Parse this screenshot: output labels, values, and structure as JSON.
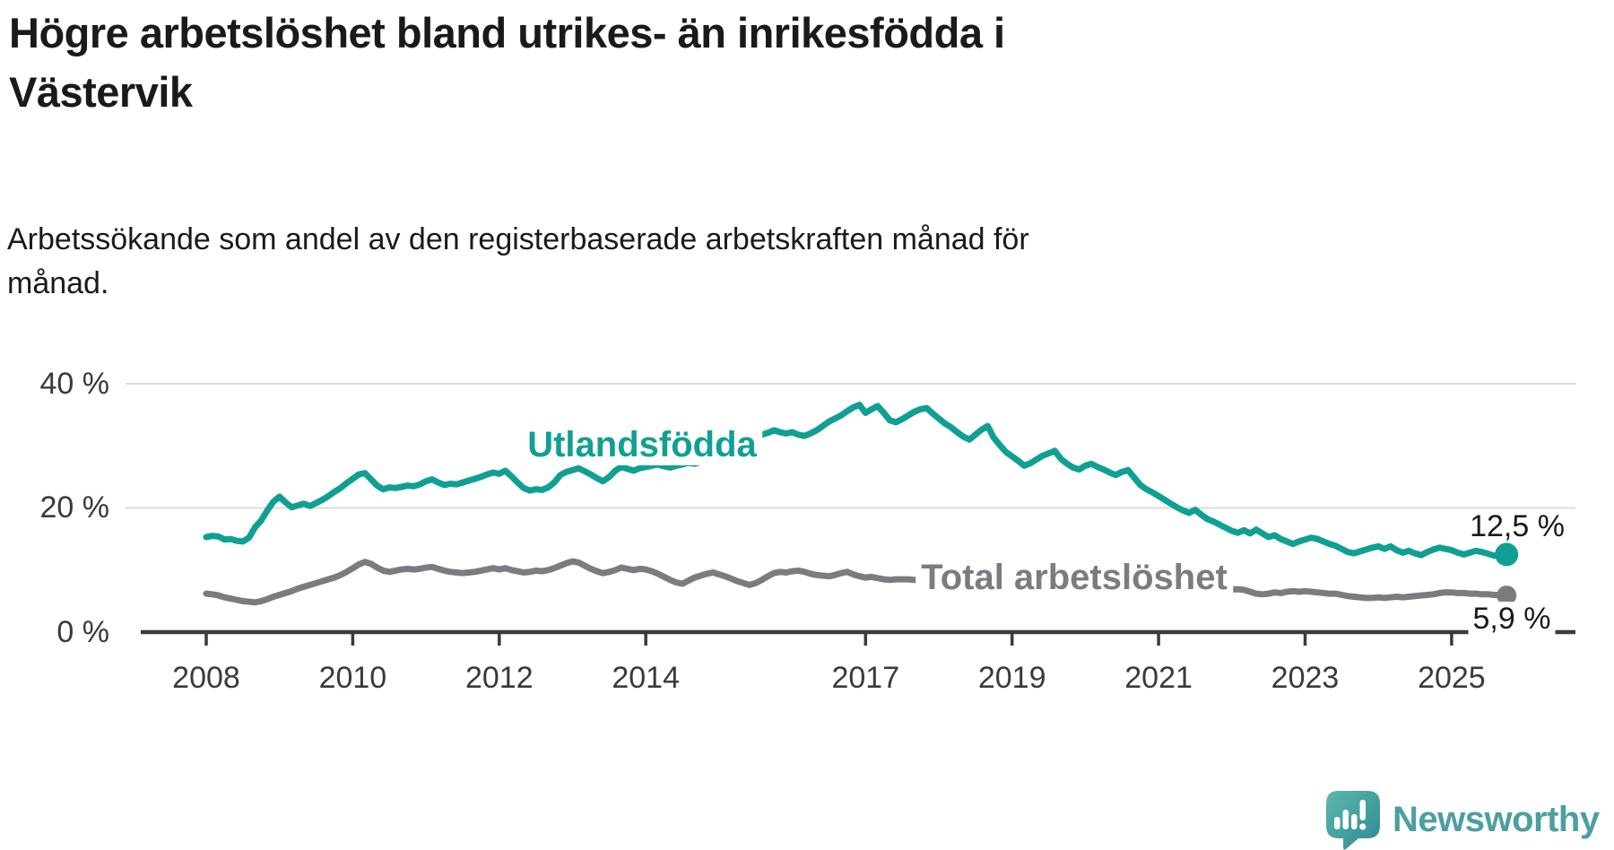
{
  "header": {
    "title": "Högre arbetslöshet bland utrikes- än inrikesfödda i\nVästervik",
    "subtitle": "Arbetssökande som andel av den registerbaserade arbetskraften månad för\nmånad."
  },
  "chart_data": {
    "type": "line",
    "title": "Högre arbetslöshet bland utrikes- än inrikesfödda i Västervik",
    "subtitle": "Arbetssökande som andel av den registerbaserade arbetskraften månad för månad.",
    "unit": "%",
    "grid": "horizontal-only",
    "x_axis": {
      "tick_labels": [
        "2008",
        "2010",
        "2012",
        "2014",
        "2017",
        "2019",
        "2021",
        "2023",
        "2025"
      ],
      "tick_years": [
        2008,
        2010,
        2012,
        2014,
        2017,
        2019,
        2021,
        2023,
        2025
      ],
      "range_years": [
        2007.1,
        2026.7
      ]
    },
    "y_axis": {
      "tick_labels": [
        "40 %",
        "20 %",
        "0 %"
      ],
      "tick_values": [
        40,
        20,
        0
      ],
      "ylim": [
        0,
        41.5
      ]
    },
    "series": [
      {
        "name": "Utlandsfödda",
        "color": "#10a093",
        "start_year": 2008,
        "frequency": "monthly",
        "end_label": "12,5 %",
        "end_value": 12.5,
        "values": [
          15.3,
          15.5,
          15.4,
          14.9,
          15.0,
          14.7,
          14.6,
          15.2,
          16.9,
          18.0,
          19.6,
          21.0,
          21.8,
          20.9,
          20.1,
          20.4,
          20.7,
          20.3,
          20.8,
          21.3,
          21.9,
          22.6,
          23.2,
          24.0,
          24.7,
          25.4,
          25.6,
          24.6,
          23.6,
          23.0,
          23.3,
          23.2,
          23.4,
          23.6,
          23.5,
          23.8,
          24.3,
          24.6,
          24.1,
          23.7,
          23.9,
          23.8,
          24.1,
          24.4,
          24.7,
          25.0,
          25.4,
          25.7,
          25.5,
          26.0,
          25.1,
          24.1,
          23.2,
          22.8,
          23.0,
          22.9,
          23.3,
          24.1,
          25.3,
          25.8,
          26.1,
          26.4,
          25.9,
          25.4,
          24.8,
          24.3,
          25.0,
          26.0,
          26.6,
          26.3,
          26.0,
          26.4,
          26.6,
          26.8,
          27.0,
          26.7,
          26.5,
          26.8,
          27.0,
          27.3,
          27.1,
          27.4,
          27.6,
          27.9,
          28.2,
          28.6,
          29.1,
          29.7,
          30.3,
          30.9,
          31.4,
          31.8,
          32.1,
          32.5,
          32.2,
          32.0,
          32.2,
          31.8,
          31.6,
          32.0,
          32.5,
          33.2,
          33.9,
          34.4,
          34.9,
          35.6,
          36.2,
          36.6,
          35.3,
          35.9,
          36.4,
          35.3,
          34.1,
          33.8,
          34.3,
          34.9,
          35.5,
          35.9,
          36.1,
          35.2,
          34.4,
          33.6,
          33.0,
          32.2,
          31.5,
          31.0,
          31.8,
          32.6,
          33.2,
          31.3,
          30.1,
          29.0,
          28.3,
          27.6,
          26.8,
          27.2,
          27.8,
          28.4,
          28.8,
          29.2,
          27.9,
          27.1,
          26.5,
          26.2,
          26.8,
          27.1,
          26.6,
          26.2,
          25.7,
          25.3,
          25.8,
          26.1,
          24.9,
          23.7,
          23.0,
          22.5,
          21.9,
          21.3,
          20.7,
          20.1,
          19.6,
          19.2,
          19.7,
          18.9,
          18.2,
          17.8,
          17.3,
          16.8,
          16.3,
          16.0,
          16.4,
          15.9,
          16.5,
          15.9,
          15.3,
          15.6,
          15.0,
          14.6,
          14.2,
          14.6,
          14.9,
          15.2,
          15.0,
          14.6,
          14.2,
          13.9,
          13.4,
          12.9,
          12.7,
          13.0,
          13.3,
          13.6,
          13.8,
          13.4,
          13.8,
          13.2,
          12.8,
          13.1,
          12.7,
          12.4,
          12.9,
          13.3,
          13.6,
          13.4,
          13.2,
          12.8,
          12.5,
          12.8,
          13.1,
          12.9,
          12.6,
          12.3,
          12.4,
          12.5
        ]
      },
      {
        "name": "Total arbetslöshet",
        "color": "#7b7c80",
        "start_year": 2008,
        "frequency": "monthly",
        "end_label": "5,9 %",
        "end_value": 5.9,
        "values": [
          6.2,
          6.1,
          5.9,
          5.6,
          5.4,
          5.2,
          5.0,
          4.9,
          4.8,
          5.0,
          5.3,
          5.7,
          6.0,
          6.3,
          6.6,
          7.0,
          7.3,
          7.6,
          7.9,
          8.2,
          8.5,
          8.8,
          9.2,
          9.7,
          10.3,
          10.9,
          11.3,
          11.0,
          10.4,
          9.9,
          9.7,
          9.9,
          10.1,
          10.2,
          10.1,
          10.2,
          10.4,
          10.5,
          10.2,
          9.9,
          9.7,
          9.6,
          9.5,
          9.6,
          9.7,
          9.9,
          10.1,
          10.3,
          10.1,
          10.3,
          10.0,
          9.8,
          9.6,
          9.7,
          9.9,
          9.8,
          10.0,
          10.3,
          10.7,
          11.1,
          11.4,
          11.2,
          10.7,
          10.2,
          9.8,
          9.5,
          9.7,
          10.0,
          10.4,
          10.2,
          10.0,
          10.2,
          10.1,
          9.8,
          9.4,
          8.9,
          8.4,
          8.0,
          7.8,
          8.3,
          8.8,
          9.1,
          9.4,
          9.6,
          9.3,
          9.0,
          8.6,
          8.2,
          7.9,
          7.6,
          7.9,
          8.4,
          9.0,
          9.5,
          9.7,
          9.6,
          9.8,
          9.9,
          9.7,
          9.4,
          9.2,
          9.1,
          9.0,
          9.2,
          9.5,
          9.7,
          9.3,
          9.0,
          8.8,
          8.9,
          8.7,
          8.5,
          8.4,
          8.5,
          8.5,
          8.5,
          8.4,
          8.4,
          8.3,
          8.3,
          8.2,
          8.1,
          8.0,
          7.9,
          7.8,
          7.7,
          7.6,
          7.6,
          7.5,
          7.5,
          7.4,
          7.4,
          7.3,
          7.3,
          7.2,
          7.2,
          7.2,
          7.2,
          7.3,
          7.3,
          7.3,
          7.3,
          7.4,
          7.4,
          7.5,
          7.6,
          8.0,
          8.4,
          8.7,
          8.9,
          8.9,
          8.8,
          8.7,
          8.6,
          8.5,
          8.4,
          8.2,
          8.1,
          7.9,
          7.8,
          7.6,
          7.5,
          7.4,
          7.3,
          7.2,
          7.1,
          7.1,
          7.0,
          6.9,
          6.9,
          6.8,
          6.5,
          6.2,
          6.1,
          6.2,
          6.4,
          6.3,
          6.5,
          6.6,
          6.5,
          6.6,
          6.5,
          6.4,
          6.3,
          6.2,
          6.2,
          6.0,
          5.8,
          5.7,
          5.6,
          5.5,
          5.5,
          5.6,
          5.5,
          5.6,
          5.7,
          5.6,
          5.7,
          5.8,
          5.9,
          6.0,
          6.1,
          6.3,
          6.4,
          6.4,
          6.3,
          6.3,
          6.2,
          6.2,
          6.1,
          6.1,
          6.0,
          6.0,
          5.9
        ]
      }
    ],
    "legend_position": "inline-labels",
    "colors": {
      "accent_teal": "#10a093",
      "neutral_gray": "#7b7c80",
      "axis": "#3a3b3c",
      "gridline": "#dcdcdc",
      "text": "#1a1a1a"
    }
  },
  "branding": {
    "logo_text": "Newsworthy",
    "logo_color": "#4c9fa1",
    "logo_bubble_color": "#3f9c9b"
  }
}
